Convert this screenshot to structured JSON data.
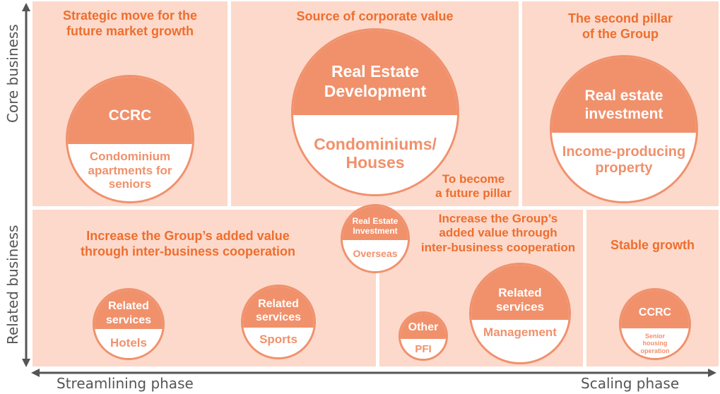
{
  "axes": {
    "y_top": "Core business",
    "y_bottom": "Related business",
    "x_left": "Streamlining phase",
    "x_right": "Scaling phase"
  },
  "panels": {
    "strategic": "Strategic move for the\nfuture market growth",
    "source": "Source of corporate value",
    "second_pillar": "The second pillar\nof the Group",
    "future_pillar": "To become\na future pillar",
    "added_value_left": "Increase the Group’s added value\nthrough inter-business cooperation",
    "added_value_right": "Increase the Group’s\nadded value through\ninter-business cooperation",
    "stable": "Stable growth"
  },
  "circles": {
    "ccrc_core": {
      "top": "CCRC",
      "bottom": "Condominium\napartments for\nseniors"
    },
    "real_estate_dev": {
      "top": "Real Estate\nDevelopment",
      "bottom": "Condominiums/\nHouses"
    },
    "real_estate_inv": {
      "top": "Real estate\ninvestment",
      "bottom": "Income-producing\nproperty"
    },
    "overseas": {
      "top": "Real Estate\nInvestment",
      "bottom": "Overseas"
    },
    "hotels": {
      "top": "Related\nservices",
      "bottom": "Hotels"
    },
    "sports": {
      "top": "Related\nservices",
      "bottom": "Sports"
    },
    "pfi": {
      "top": "Other",
      "bottom": "PFI"
    },
    "management": {
      "top": "Related\nservices",
      "bottom": "Management"
    },
    "ccrc_related": {
      "top": "CCRC",
      "bottom": "Senior\nhousing\noperation"
    }
  },
  "colors": {
    "panel": "#fcd9cb",
    "accent": "#f0916c",
    "title": "#ee6e2e"
  }
}
